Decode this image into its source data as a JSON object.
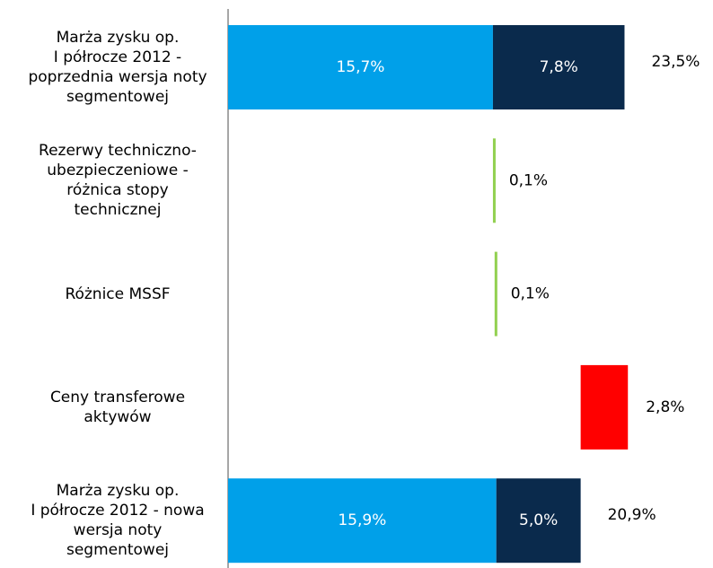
{
  "chart_data": {
    "type": "waterfall",
    "categories": [
      "Marża zysku op.\nI półrocze 2012 -\npoprzednia wersja noty\nsegmentowej",
      "Rezerwy techniczno-\nubezpieczeniowe -\nróżnica stopy\ntechnicznej",
      "Różnice MSSF",
      "Ceny transferowe\naktywów",
      "Marża zysku op.\nI półrocze 2012 - nowa\nwersja noty\nsegmentowej"
    ],
    "series": [
      {
        "color": "#00a0e9",
        "values": [
          15.7,
          null,
          null,
          null,
          15.9
        ],
        "value_labels": [
          "15,7%",
          null,
          null,
          null,
          "15,9%"
        ]
      },
      {
        "color": "#0a2a4c",
        "values": [
          7.8,
          null,
          null,
          null,
          5.0
        ],
        "value_labels": [
          "7,8%",
          null,
          null,
          null,
          "5,0%"
        ]
      },
      {
        "color": "#92d050",
        "values": [
          null,
          0.1,
          0.1,
          null,
          null
        ],
        "value_labels": [
          null,
          "0,1%",
          "0,1%",
          null,
          null
        ]
      },
      {
        "color": "#ff0000",
        "values": [
          null,
          null,
          null,
          2.8,
          null
        ],
        "value_labels": [
          null,
          null,
          null,
          "2,8%",
          null
        ]
      }
    ],
    "totals": [
      23.5,
      null,
      null,
      null,
      20.9
    ],
    "total_labels": [
      "23,5%",
      null,
      null,
      null,
      "20,9%"
    ],
    "xlim": [
      0,
      28
    ]
  }
}
